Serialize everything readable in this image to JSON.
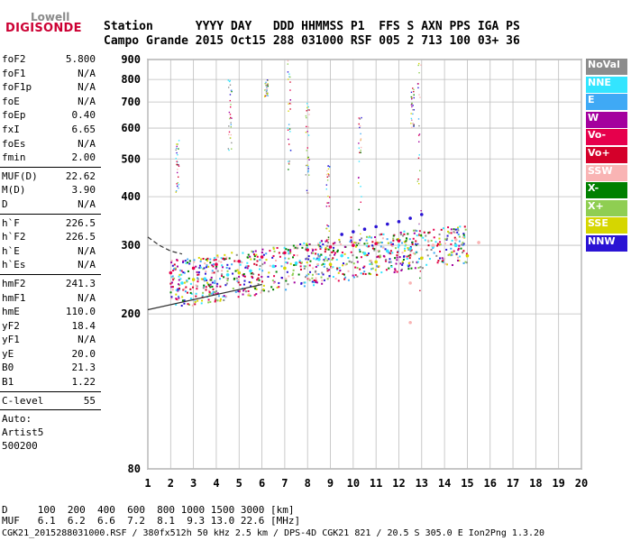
{
  "logo": {
    "top": "Lowell",
    "main": "DIGISONDE"
  },
  "header": {
    "line1": "Station      YYYY DAY   DDD HHMMSS P1  FFS S AXN PPS IGA PS",
    "line2": "Campo Grande 2015 Oct15 288 031000 RSF 005 2 713 100 03+ 36"
  },
  "params": {
    "group1": [
      [
        "foF2",
        "5.800"
      ],
      [
        "foF1",
        "N/A"
      ],
      [
        "foF1p",
        "N/A"
      ],
      [
        "foE",
        "N/A"
      ],
      [
        "foEp",
        "0.40"
      ],
      [
        "fxI",
        "6.65"
      ],
      [
        "foEs",
        "N/A"
      ],
      [
        "fmin",
        "2.00"
      ]
    ],
    "group2": [
      [
        "MUF(D)",
        "22.62"
      ],
      [
        "M(D)",
        "3.90"
      ],
      [
        "D",
        "N/A"
      ]
    ],
    "group3": [
      [
        "h`F",
        "226.5"
      ],
      [
        "h`F2",
        "226.5"
      ],
      [
        "h`E",
        "N/A"
      ],
      [
        "h`Es",
        "N/A"
      ]
    ],
    "group4": [
      [
        "hmF2",
        "241.3"
      ],
      [
        "hmF1",
        "N/A"
      ],
      [
        "hmE",
        "110.0"
      ],
      [
        "yF2",
        "18.4"
      ],
      [
        "yF1",
        "N/A"
      ],
      [
        "yE",
        "20.0"
      ],
      [
        "B0",
        "21.3"
      ],
      [
        "B1",
        "1.22"
      ]
    ],
    "group5": [
      [
        "C-level",
        "55"
      ]
    ],
    "autoscaling": [
      "Auto:",
      "Artist5",
      "500200"
    ]
  },
  "legend": [
    {
      "label": "NoVal",
      "color": "#8c8c8c"
    },
    {
      "label": "NNE",
      "color": "#33e5ff"
    },
    {
      "label": "E",
      "color": "#3fa9f5"
    },
    {
      "label": "W",
      "color": "#a3009e"
    },
    {
      "label": "Vo-",
      "color": "#e6004c"
    },
    {
      "label": "Vo+",
      "color": "#d4002a"
    },
    {
      "label": "SSW",
      "color": "#f9b4b4"
    },
    {
      "label": "X-",
      "color": "#008000"
    },
    {
      "label": "X+",
      "color": "#8fce52"
    },
    {
      "label": "SSE",
      "color": "#d6d600"
    },
    {
      "label": "NNW",
      "color": "#2a13d4"
    }
  ],
  "footer": {
    "line1": "D     100  200  400  600  800 1000 1500 3000 [km]",
    "line2": "MUF   6.1  6.2  6.6  7.2  8.1  9.3 13.0 22.6 [MHz]",
    "line3": "CGK21_2015288031000.RSF / 380fx512h 50 kHz 2.5 km / DPS-4D CGK21 821 / 20.5 S 305.0 E Ion2Png 1.3.20"
  },
  "chart_data": {
    "type": "scatter",
    "title": "",
    "xlabel": "",
    "ylabel": "",
    "xlim": [
      1,
      20
    ],
    "ylim": [
      80,
      900
    ],
    "x_ticks": [
      1,
      2,
      3,
      4,
      5,
      6,
      7,
      8,
      9,
      10,
      11,
      12,
      13,
      14,
      15,
      16,
      17,
      18,
      19,
      20
    ],
    "y_ticks": [
      80,
      200,
      300,
      400,
      500,
      600,
      700,
      800,
      900
    ],
    "y_scale": "log",
    "grid": true,
    "legend_placement": "right",
    "series": [
      {
        "name": "Vo-",
        "color": "#e6004c",
        "points": [
          [
            2.0,
            255
          ],
          [
            3.0,
            262
          ],
          [
            4.0,
            268
          ],
          [
            5.0,
            273
          ],
          [
            6.0,
            280
          ],
          [
            7.0,
            287
          ],
          [
            8.0,
            292
          ],
          [
            9.0,
            297
          ],
          [
            10.0,
            300
          ],
          [
            11.0,
            303
          ],
          [
            12.0,
            308
          ]
        ]
      },
      {
        "name": "NNE",
        "color": "#33e5ff",
        "points": [
          [
            2.5,
            240
          ],
          [
            3.5,
            246
          ],
          [
            4.5,
            252
          ],
          [
            5.5,
            258
          ],
          [
            6.5,
            265
          ],
          [
            7.5,
            270
          ],
          [
            8.5,
            276
          ],
          [
            9.5,
            282
          ],
          [
            10.5,
            286
          ],
          [
            11.5,
            290
          ],
          [
            12.5,
            294
          ],
          [
            13.5,
            298
          ],
          [
            14.5,
            300
          ]
        ]
      },
      {
        "name": "NNW",
        "color": "#2a13d4",
        "points": [
          [
            9.5,
            320
          ],
          [
            10.0,
            325
          ],
          [
            10.5,
            330
          ],
          [
            11.0,
            335
          ],
          [
            11.5,
            340
          ],
          [
            12.0,
            345
          ],
          [
            12.5,
            352
          ],
          [
            13.0,
            360
          ]
        ]
      },
      {
        "name": "SSE",
        "color": "#d6d600",
        "points": [
          [
            3.0,
            245
          ],
          [
            5.0,
            255
          ],
          [
            7.0,
            262
          ],
          [
            9.0,
            268
          ],
          [
            11.0,
            272
          ],
          [
            13.0,
            278
          ],
          [
            15.0,
            282
          ]
        ]
      },
      {
        "name": "SSW",
        "color": "#f9b4b4",
        "points": [
          [
            12.5,
            190
          ],
          [
            12.5,
            240
          ],
          [
            13.5,
            300
          ],
          [
            14.5,
            310
          ],
          [
            15.5,
            305
          ]
        ]
      }
    ],
    "curve_points": [
      [
        1.0,
        315
      ],
      [
        1.5,
        300
      ],
      [
        2.0,
        290
      ],
      [
        2.5,
        285
      ]
    ]
  }
}
